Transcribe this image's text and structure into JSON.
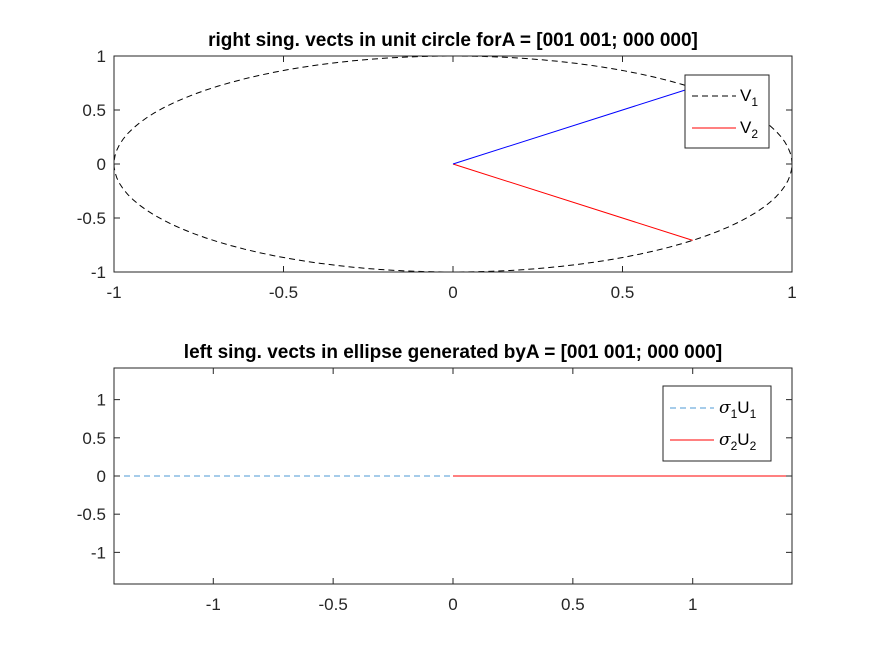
{
  "chart_data": [
    {
      "type": "line",
      "title": "right sing. vects in unit circle forA = [001 001; 000 000]",
      "xlim": [
        -1,
        1
      ],
      "ylim": [
        -1,
        1
      ],
      "xticks": [
        "-1",
        "-0.5",
        "0",
        "0.5",
        "1"
      ],
      "yticks": [
        "1",
        "0.5",
        "0",
        "-0.5",
        "-1"
      ],
      "grid": false,
      "legend_placement": "top-right",
      "series": [
        {
          "name": "V",
          "subscript": "1",
          "style": "dashed",
          "color": "#000000",
          "x_fn": "cos",
          "y_fn": "sin",
          "points": 121
        },
        {
          "name": "V",
          "subscript": "2",
          "style": "solid",
          "color": "#ff0000",
          "x": [
            0,
            0.7071
          ],
          "y": [
            0,
            -0.7071
          ]
        },
        {
          "name": "",
          "style": "solid",
          "color": "#0000ff",
          "x": [
            0,
            0.7071
          ],
          "y": [
            0,
            0.7071
          ]
        }
      ]
    },
    {
      "type": "line",
      "title": "left sing. vects in ellipse generated byA = [001 001; 000 000]",
      "xlim": [
        -1.4142,
        1.4142
      ],
      "ylim": [
        -1.4142,
        1.4142
      ],
      "xticks": [
        "-1",
        "-0.5",
        "0",
        "0.5",
        "1"
      ],
      "yticks": [
        "1",
        "0.5",
        "0",
        "-0.5",
        "-1"
      ],
      "grid": false,
      "legend_placement": "top-right",
      "series": [
        {
          "name": "σ",
          "name_sub": "1",
          "name2": "U",
          "name2_sub": "1",
          "style": "dashed",
          "color": "#4d9ad4",
          "x": [
            -1.4142,
            0
          ],
          "y": [
            0,
            0
          ]
        },
        {
          "name": "σ",
          "name_sub": "2",
          "name2": "U",
          "name2_sub": "2",
          "style": "solid",
          "color": "#ff0000",
          "x": [
            0,
            1.4142
          ],
          "y": [
            0,
            0
          ]
        }
      ]
    }
  ]
}
